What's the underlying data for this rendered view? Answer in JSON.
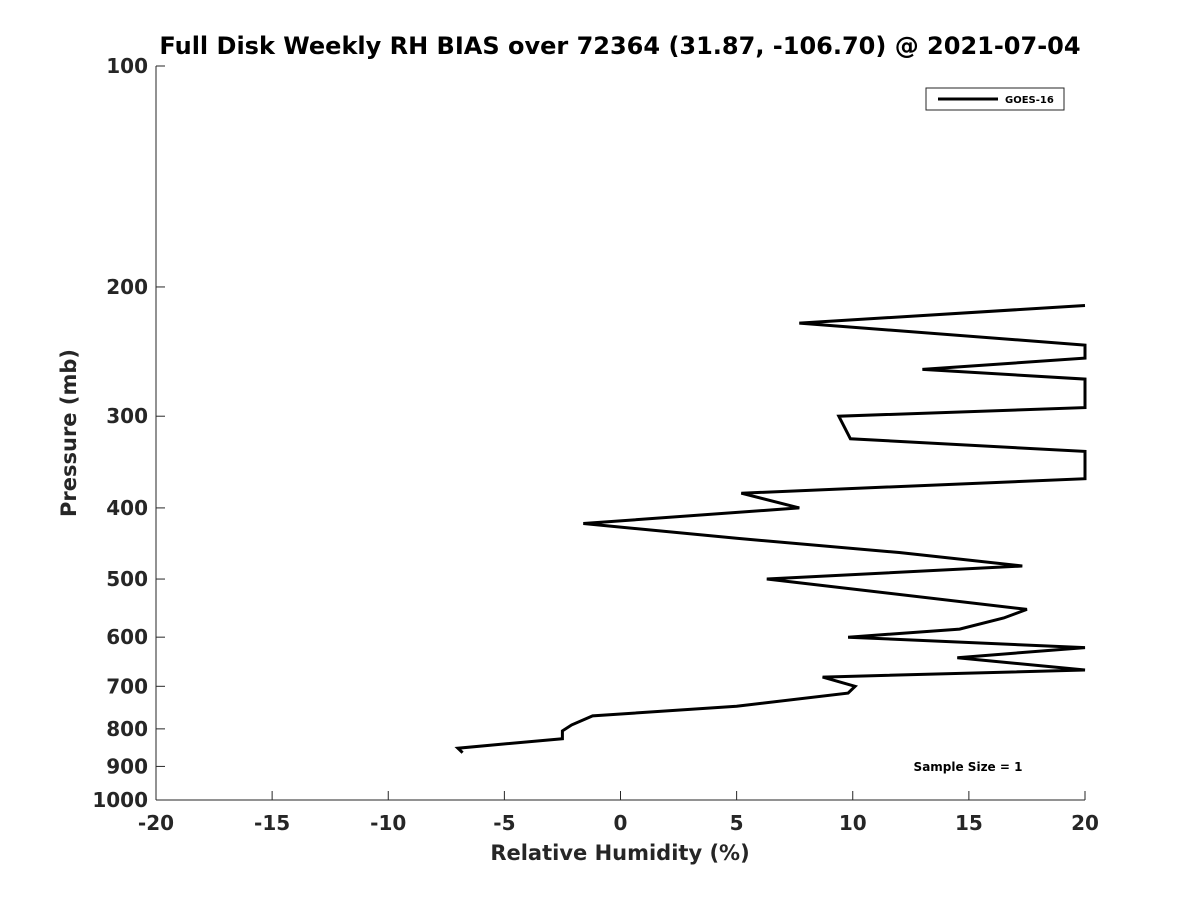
{
  "chart_data": {
    "type": "line",
    "title": "Full Disk Weekly RH BIAS over 72364 (31.87, -106.70) @ 2021-07-04",
    "xlabel": "Relative Humidity (%)",
    "ylabel": "Pressure (mb)",
    "xlim": [
      -20,
      20
    ],
    "ylim": [
      100,
      1000
    ],
    "yscale": "log",
    "y_reversed": true,
    "grid": false,
    "legend_position": "top-right",
    "x_ticks": [
      "-20",
      "-15",
      "-10",
      "-5",
      "0",
      "5",
      "10",
      "15",
      "20"
    ],
    "y_ticks": [
      "100",
      "200",
      "300",
      "400",
      "500",
      "600",
      "700",
      "800",
      "900",
      "1000"
    ],
    "series": [
      {
        "name": "GOES-16",
        "color": "#000000",
        "points": [
          {
            "rh": -6.8,
            "p": 862
          },
          {
            "rh": -7.0,
            "p": 850
          },
          {
            "rh": -2.5,
            "p": 825
          },
          {
            "rh": -2.5,
            "p": 805
          },
          {
            "rh": -2.1,
            "p": 790
          },
          {
            "rh": -1.2,
            "p": 768
          },
          {
            "rh": 5.0,
            "p": 745
          },
          {
            "rh": 9.8,
            "p": 715
          },
          {
            "rh": 10.1,
            "p": 700
          },
          {
            "rh": 8.7,
            "p": 680
          },
          {
            "rh": 20.0,
            "p": 665
          },
          {
            "rh": 14.5,
            "p": 640
          },
          {
            "rh": 20.0,
            "p": 620
          },
          {
            "rh": 9.8,
            "p": 600
          },
          {
            "rh": 14.6,
            "p": 585
          },
          {
            "rh": 16.5,
            "p": 565
          },
          {
            "rh": 17.5,
            "p": 550
          },
          {
            "rh": 6.3,
            "p": 500
          },
          {
            "rh": 17.3,
            "p": 480
          },
          {
            "rh": 12.0,
            "p": 460
          },
          {
            "rh": 5.0,
            "p": 440
          },
          {
            "rh": -1.6,
            "p": 420
          },
          {
            "rh": 7.7,
            "p": 400
          },
          {
            "rh": 5.2,
            "p": 382
          },
          {
            "rh": 20.0,
            "p": 365
          },
          {
            "rh": 20.0,
            "p": 335
          },
          {
            "rh": 9.9,
            "p": 322
          },
          {
            "rh": 9.4,
            "p": 300
          },
          {
            "rh": 20.0,
            "p": 292
          },
          {
            "rh": 20.0,
            "p": 267
          },
          {
            "rh": 13.0,
            "p": 259
          },
          {
            "rh": 20.0,
            "p": 250
          },
          {
            "rh": 20.0,
            "p": 240
          },
          {
            "rh": 7.7,
            "p": 224
          },
          {
            "rh": 20.0,
            "p": 212
          }
        ]
      }
    ],
    "annotations": [
      "Sample Size = 1"
    ]
  }
}
